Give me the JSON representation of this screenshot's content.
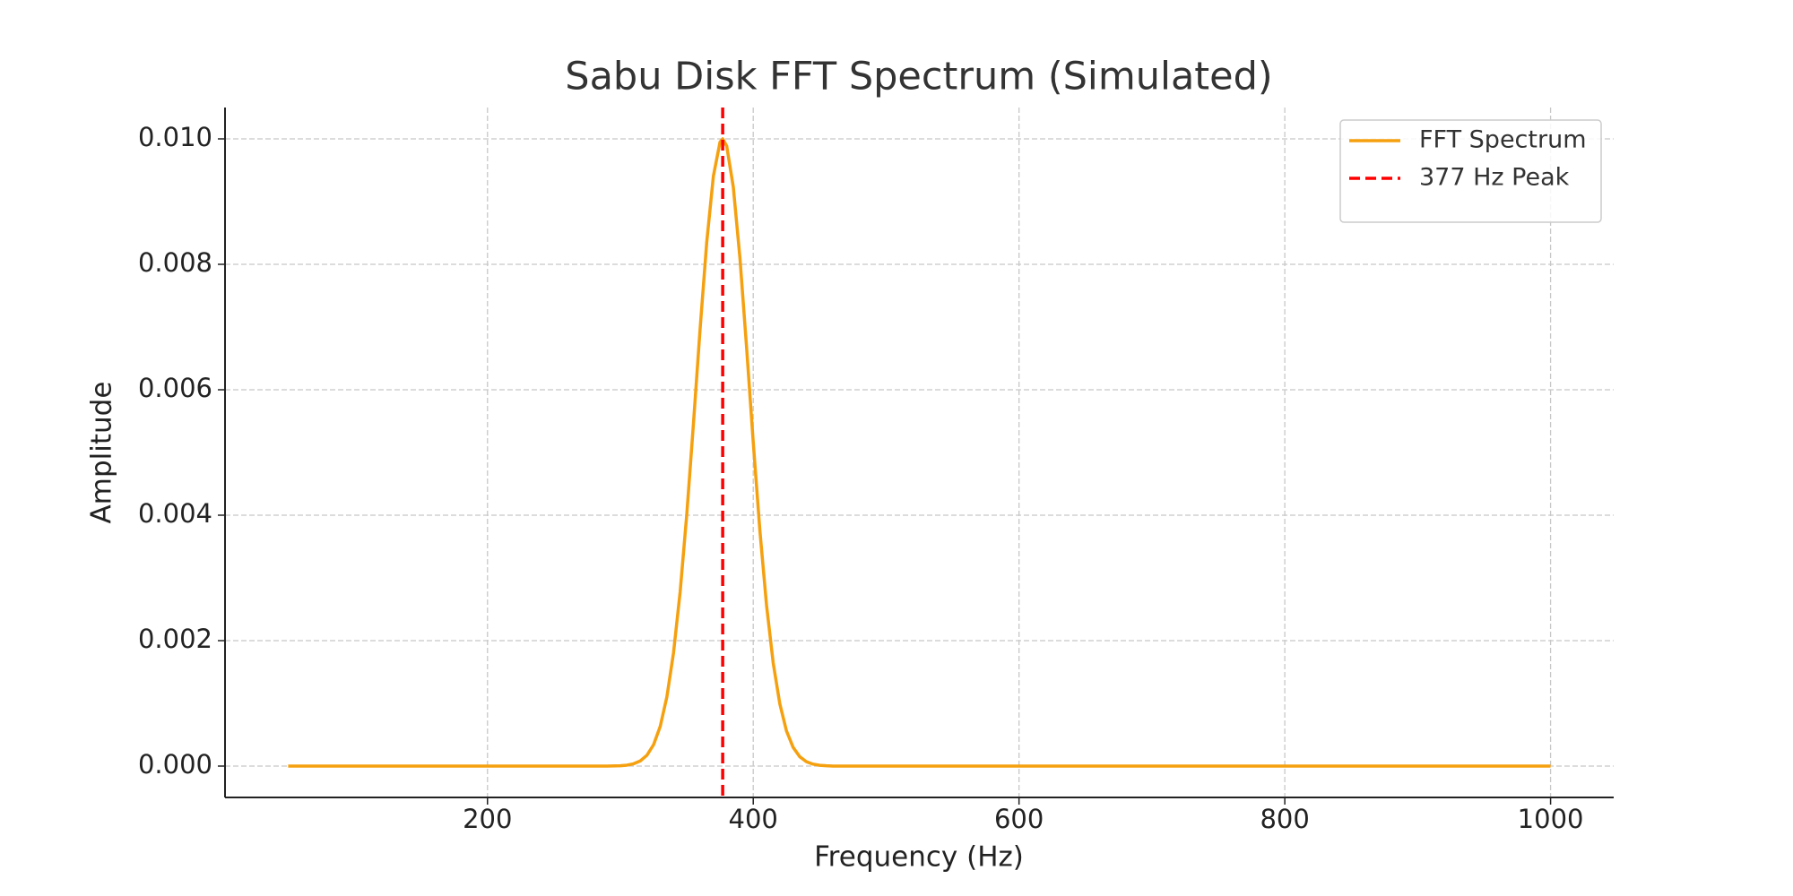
{
  "chart_data": {
    "type": "line",
    "title": "Sabu Disk FFT Spectrum (Simulated)",
    "x_label": "Frequency (Hz)",
    "y_label": "Amplitude",
    "x": [
      50,
      100,
      150,
      200,
      250,
      280,
      290,
      300,
      305,
      310,
      315,
      320,
      325,
      330,
      335,
      340,
      345,
      350,
      355,
      360,
      365,
      370,
      375,
      377,
      380,
      385,
      390,
      395,
      400,
      405,
      410,
      415,
      420,
      425,
      430,
      435,
      440,
      445,
      450,
      455,
      460,
      470,
      500,
      550,
      600,
      650,
      700,
      750,
      800,
      850,
      900,
      950,
      1000
    ],
    "series": [
      {
        "name": "FFT Spectrum",
        "color": "#f5a00f",
        "values": [
          0,
          0,
          0,
          0,
          0,
          0,
          0,
          6e-06,
          1.5e-05,
          3.7e-05,
          8.2e-05,
          0.000172,
          0.000341,
          0.000632,
          0.001103,
          0.001806,
          0.00278,
          0.00402,
          0.005461,
          0.006968,
          0.008353,
          0.009406,
          0.00995,
          0.01,
          0.009888,
          0.009231,
          0.008096,
          0.00667,
          0.005162,
          0.003753,
          0.002564,
          0.001645,
          0.000992,
          0.000561,
          0.000299,
          0.000149,
          7e-05,
          3.1e-05,
          1.3e-05,
          5e-06,
          0,
          0,
          0,
          0,
          0,
          0,
          0,
          0,
          0,
          0,
          0,
          0,
          0
        ]
      }
    ],
    "vline": {
      "x": 377,
      "name": "377 Hz Peak",
      "color": "#ff0000",
      "style": "dashed"
    },
    "xlim": [
      2.5,
      1047.5
    ],
    "xticks": [
      200,
      400,
      600,
      800,
      1000
    ],
    "ylim": [
      -0.0005,
      0.0105
    ],
    "yticks": [
      {
        "value": 0,
        "label": "0.000"
      },
      {
        "value": 0.002,
        "label": "0.002"
      },
      {
        "value": 0.004,
        "label": "0.004"
      },
      {
        "value": 0.006,
        "label": "0.006"
      },
      {
        "value": 0.008,
        "label": "0.008"
      },
      {
        "value": 0.01,
        "label": "0.010"
      }
    ],
    "grid": true,
    "legend": "upper right"
  }
}
